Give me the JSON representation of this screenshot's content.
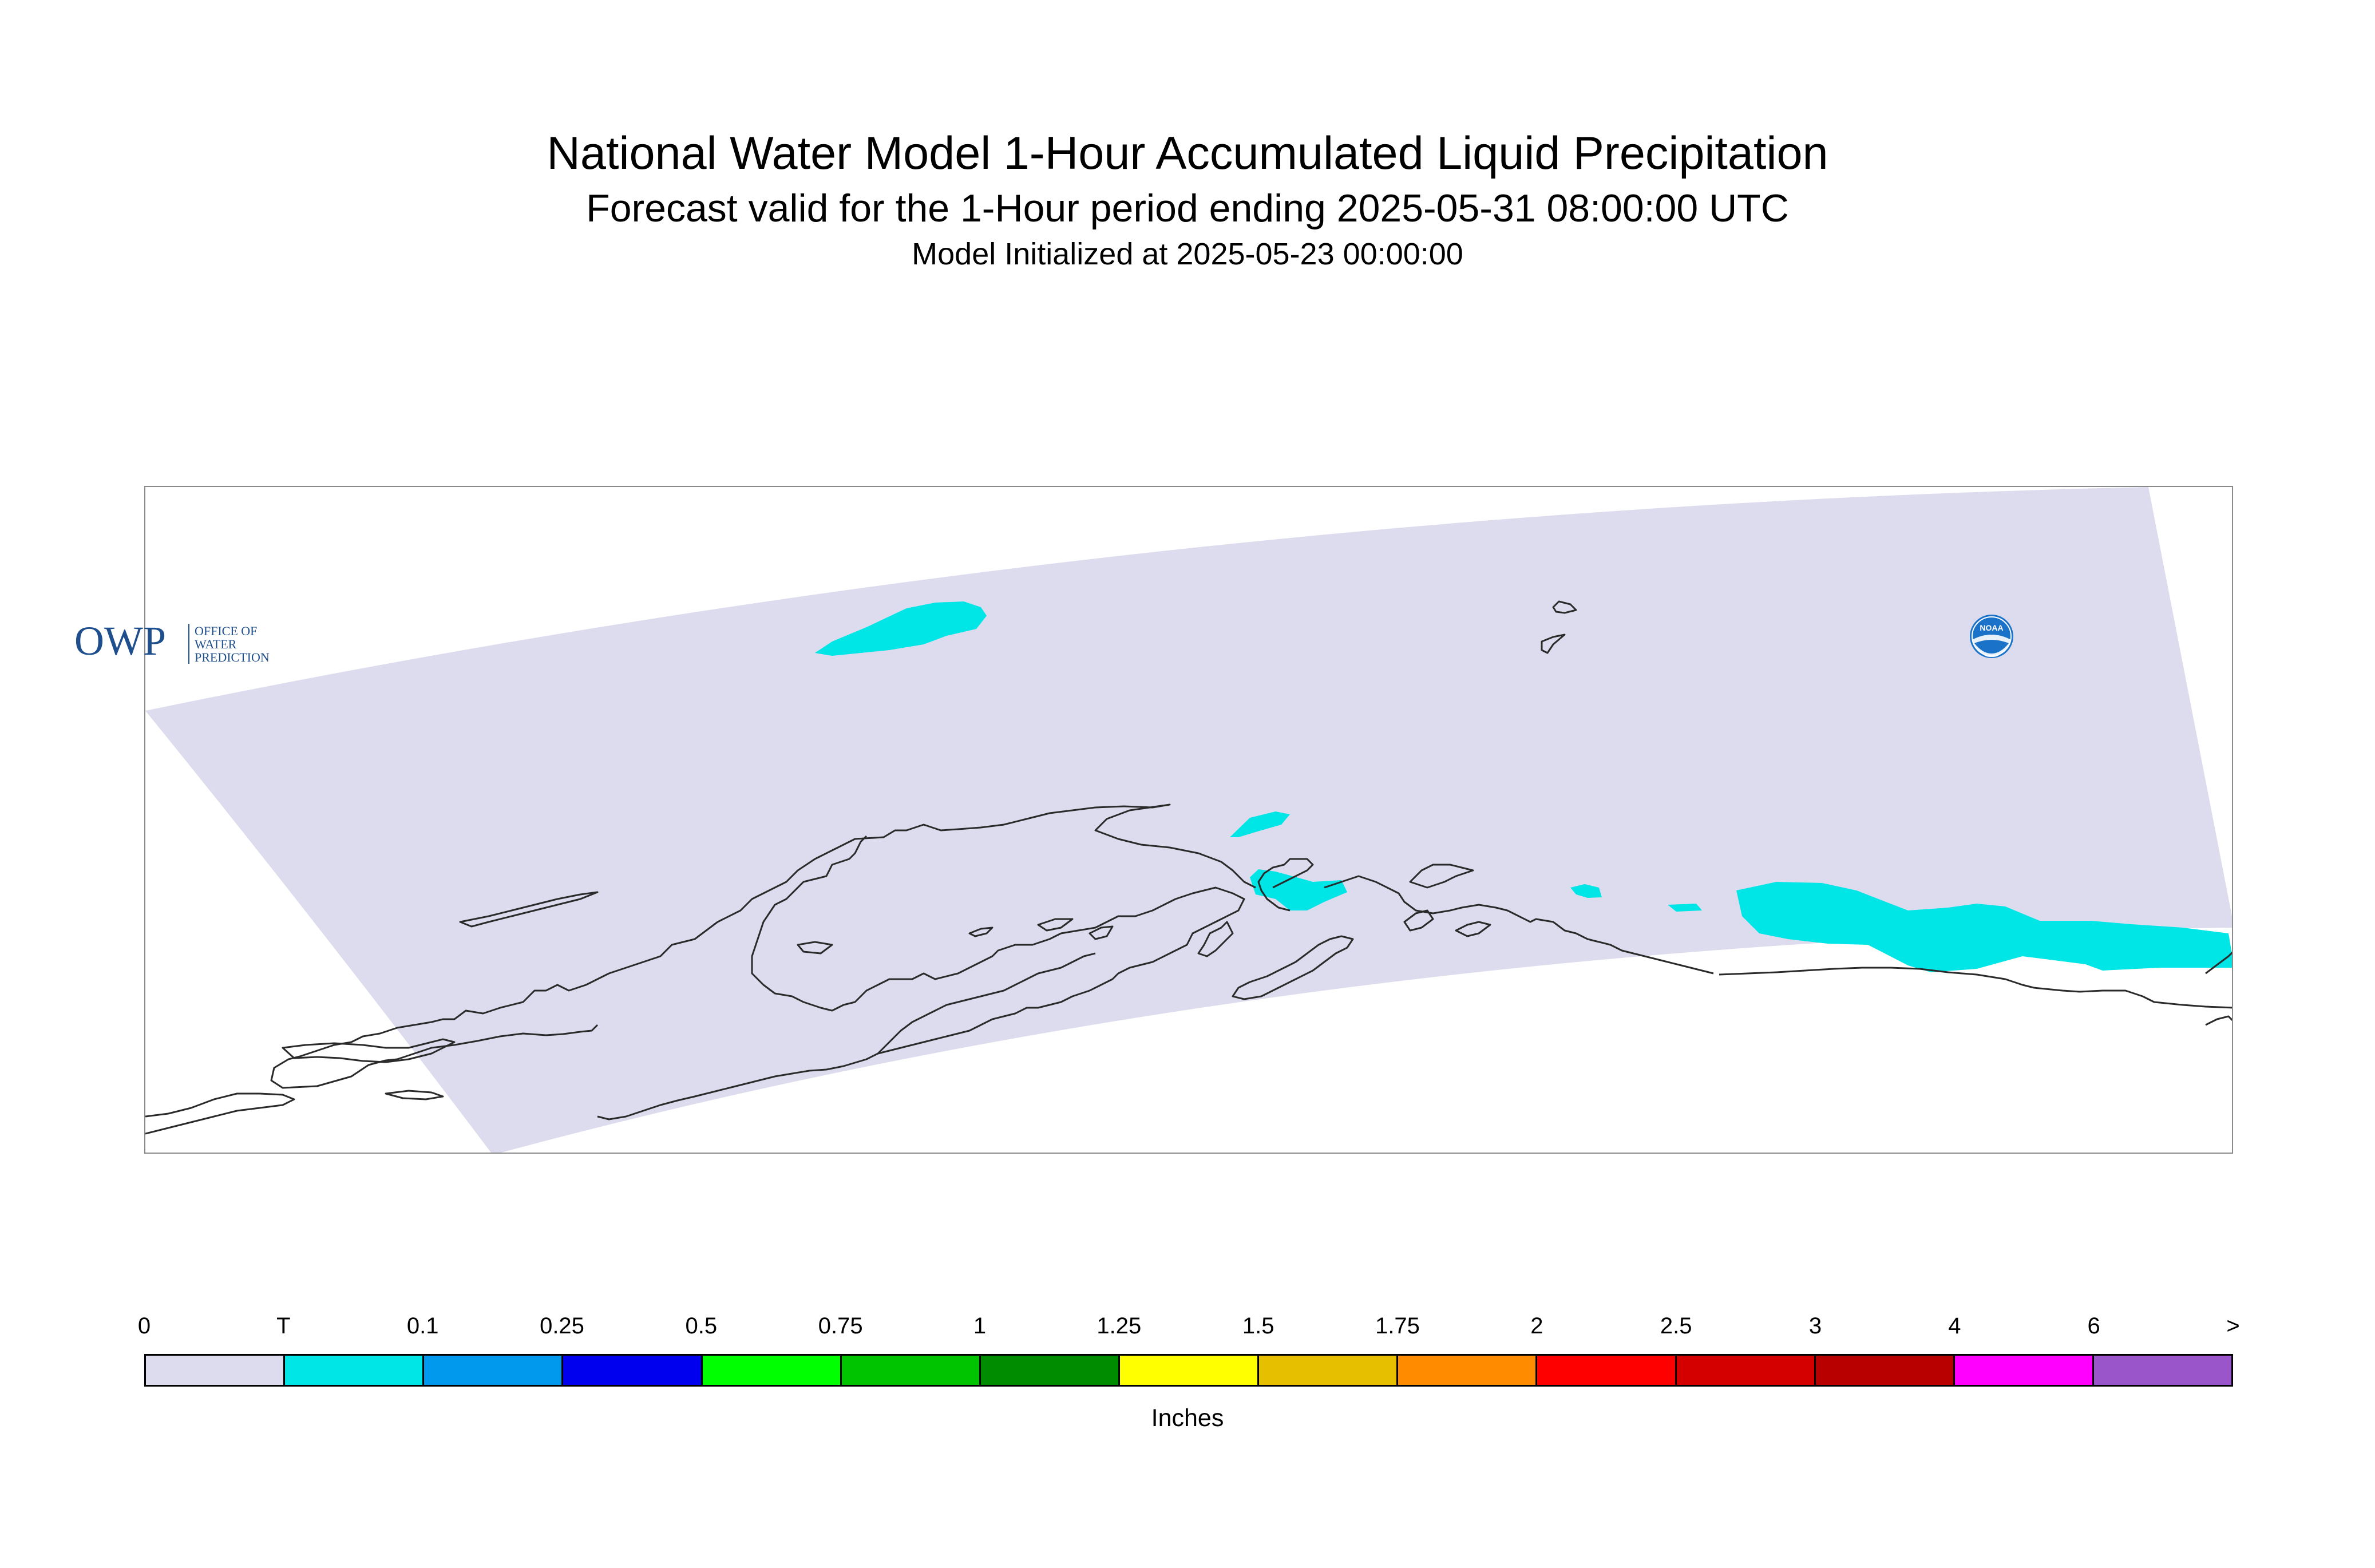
{
  "title": {
    "line1": "National Water Model 1-Hour Accumulated Liquid Precipitation",
    "line2": "Forecast valid for the 1-Hour period ending 2025-05-31 08:00:00 UTC",
    "line3": "Model Initialized at 2025-05-23 00:00:00"
  },
  "map": {
    "domain_fill_color": "#dcdcee",
    "coastline_color": "#2a2a2a",
    "precip_color": "#00e5e5",
    "frame_color": "#8a8a8a"
  },
  "logos": {
    "owp": {
      "mark": "OWP",
      "line1": "OFFICE OF",
      "line2": "WATER",
      "line3": "PREDICTION",
      "color": "#1f4e8c"
    },
    "noaa": {
      "text": "NOAA",
      "color": "#1a73c9"
    }
  },
  "legend": {
    "units": "Inches",
    "ticks": [
      "0",
      "T",
      "0.1",
      "0.25",
      "0.5",
      "0.75",
      "1",
      "1.25",
      "1.5",
      "1.75",
      "2",
      "2.5",
      "3",
      "4",
      "6",
      ">"
    ],
    "colors": [
      "#dcdcee",
      "#00e5e5",
      "#0099ee",
      "#0000ee",
      "#00ff00",
      "#00c400",
      "#008c00",
      "#ffff00",
      "#e5bf00",
      "#ff8c00",
      "#ff0000",
      "#d40000",
      "#b80000",
      "#ff00ff",
      "#9955c9"
    ]
  }
}
